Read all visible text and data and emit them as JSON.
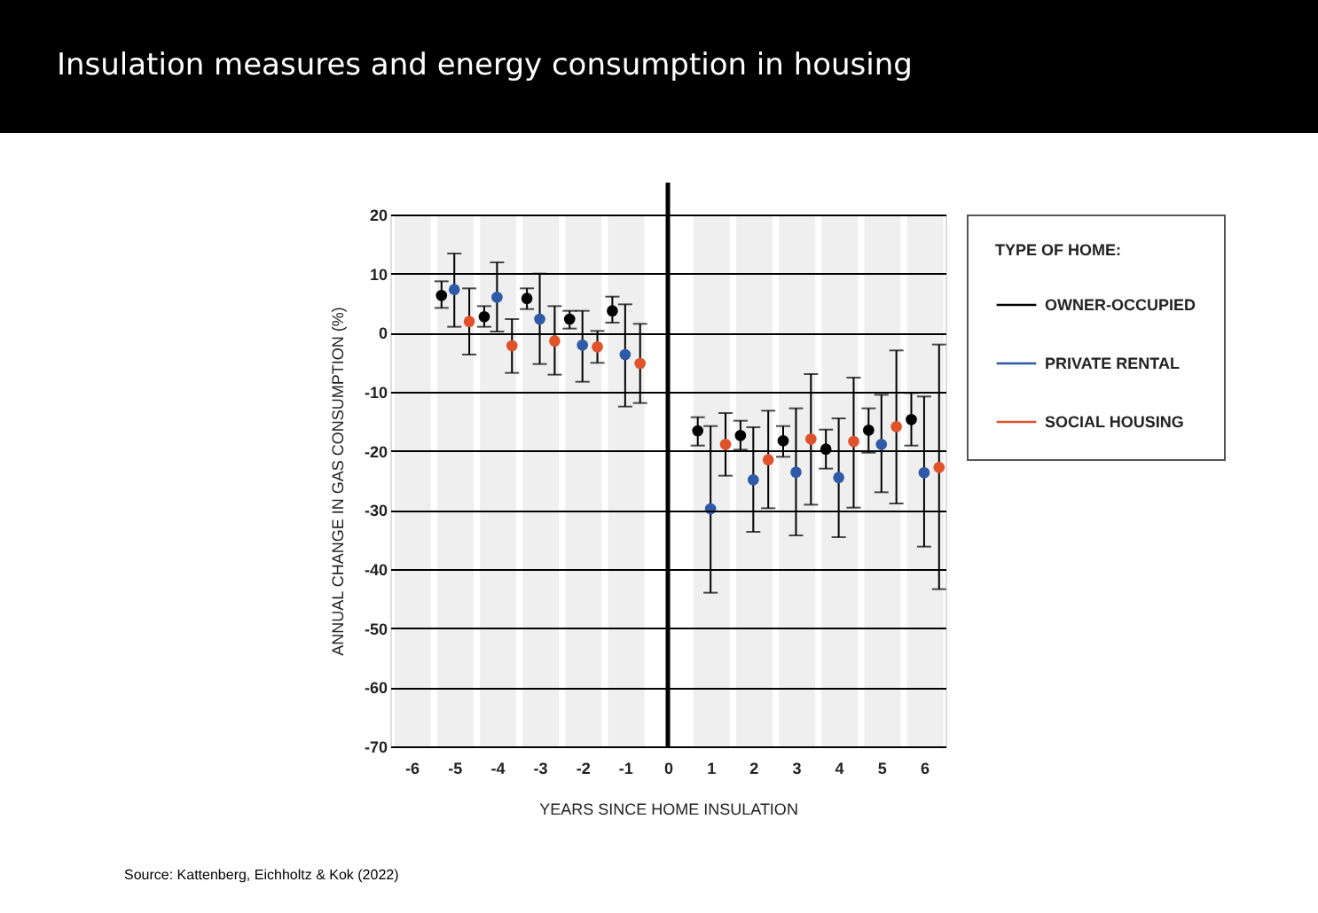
{
  "chart_data": {
    "type": "scatter",
    "title": "Insulation measures and energy consumption in housing",
    "xlabel": "YEARS SINCE HOME INSULATION",
    "ylabel": "ANNUAL CHANGE IN GAS CONSUMPTION (%)",
    "legend_title": "TYPE OF HOME:",
    "annotations": [
      "Source: Kattenberg, Eichholtz & Kok (2022)"
    ],
    "xlim": [
      -6.5,
      6.5
    ],
    "xticks": [
      -6,
      -5,
      -4,
      -3,
      -2,
      -1,
      0,
      1,
      2,
      3,
      4,
      5,
      6
    ],
    "ylim": [
      -70,
      20
    ],
    "yticks": [
      -70,
      -60,
      -50,
      -40,
      -30,
      -20,
      -10,
      0,
      10,
      20
    ],
    "grid": "y",
    "legend": "right",
    "marker": "circle",
    "series": [
      {
        "name": "OWNER-OCCUPIED",
        "color": "#000000",
        "x": [
          -5.3,
          -4.3,
          -3.3,
          -2.3,
          -1.3,
          0.7,
          1.7,
          2.7,
          3.7,
          4.7,
          5.7
        ],
        "values": [
          6.3,
          2.7,
          5.8,
          2.3,
          3.7,
          -16.6,
          -17.4,
          -18.3,
          -19.7,
          -16.5,
          -14.7
        ],
        "errors": [
          [
            4.2,
            8.7
          ],
          [
            1.0,
            4.5
          ],
          [
            4.0,
            7.5
          ],
          [
            0.7,
            3.7
          ],
          [
            1.7,
            6.1
          ],
          [
            -19.1,
            -14.3
          ],
          [
            -19.8,
            -14.9
          ],
          [
            -21.0,
            -15.8
          ],
          [
            -23.0,
            -16.4
          ],
          [
            -20.3,
            -12.8
          ],
          [
            -19.1,
            -10.2
          ]
        ]
      },
      {
        "name": "PRIVATE RENTAL",
        "color": "#2f5aa8",
        "x": [
          -5,
          -4,
          -3,
          -2,
          -1,
          1,
          2,
          3,
          4,
          5,
          6
        ],
        "values": [
          7.3,
          6.0,
          2.3,
          -2.1,
          -3.7,
          -29.8,
          -24.9,
          -23.6,
          -24.5,
          -18.9,
          -23.7
        ],
        "errors": [
          [
            1.0,
            13.4
          ],
          [
            0.2,
            11.9
          ],
          [
            -5.3,
            10.0
          ],
          [
            -8.3,
            3.7
          ],
          [
            -12.5,
            4.8
          ],
          [
            -44.0,
            -15.8
          ],
          [
            -33.7,
            -16.0
          ],
          [
            -34.3,
            -12.8
          ],
          [
            -34.6,
            -14.5
          ],
          [
            -27.0,
            -10.5
          ],
          [
            -36.2,
            -10.8
          ]
        ]
      },
      {
        "name": "SOCIAL HOUSING",
        "color": "#e0522a",
        "x": [
          -4.65,
          -3.65,
          -2.65,
          -1.65,
          -0.65,
          1.35,
          2.35,
          3.35,
          4.35,
          5.35,
          6.35
        ],
        "values": [
          1.9,
          -2.2,
          -1.4,
          -2.4,
          -5.2,
          -18.9,
          -21.5,
          -18.0,
          -18.4,
          -15.9,
          -22.8
        ],
        "errors": [
          [
            -3.7,
            7.5
          ],
          [
            -6.8,
            2.3
          ],
          [
            -7.1,
            4.5
          ],
          [
            -5.1,
            0.3
          ],
          [
            -11.9,
            1.5
          ],
          [
            -24.2,
            -13.6
          ],
          [
            -29.7,
            -13.2
          ],
          [
            -29.1,
            -7.0
          ],
          [
            -29.6,
            -7.6
          ],
          [
            -28.9,
            -3.0
          ],
          [
            -43.4,
            -2.0
          ]
        ]
      }
    ],
    "ref_lines": [
      {
        "axis": "x",
        "value": 0,
        "color": "#000000"
      }
    ],
    "bands": [
      {
        "axis": "x",
        "from": -6.4,
        "to": -5.55,
        "color": "#efefef"
      },
      {
        "axis": "x",
        "from": -5.4,
        "to": -4.55,
        "color": "#efefef"
      },
      {
        "axis": "x",
        "from": -4.4,
        "to": -3.55,
        "color": "#efefef"
      },
      {
        "axis": "x",
        "from": -3.4,
        "to": -2.55,
        "color": "#efefef"
      },
      {
        "axis": "x",
        "from": -2.4,
        "to": -1.55,
        "color": "#efefef"
      },
      {
        "axis": "x",
        "from": -1.4,
        "to": -0.55,
        "color": "#efefef"
      },
      {
        "axis": "x",
        "from": 0.6,
        "to": 1.45,
        "color": "#efefef"
      },
      {
        "axis": "x",
        "from": 1.6,
        "to": 2.45,
        "color": "#efefef"
      },
      {
        "axis": "x",
        "from": 2.6,
        "to": 3.45,
        "color": "#efefef"
      },
      {
        "axis": "x",
        "from": 3.6,
        "to": 4.45,
        "color": "#efefef"
      },
      {
        "axis": "x",
        "from": 4.6,
        "to": 5.45,
        "color": "#efefef"
      },
      {
        "axis": "x",
        "from": 5.6,
        "to": 6.45,
        "color": "#efefef"
      }
    ]
  }
}
